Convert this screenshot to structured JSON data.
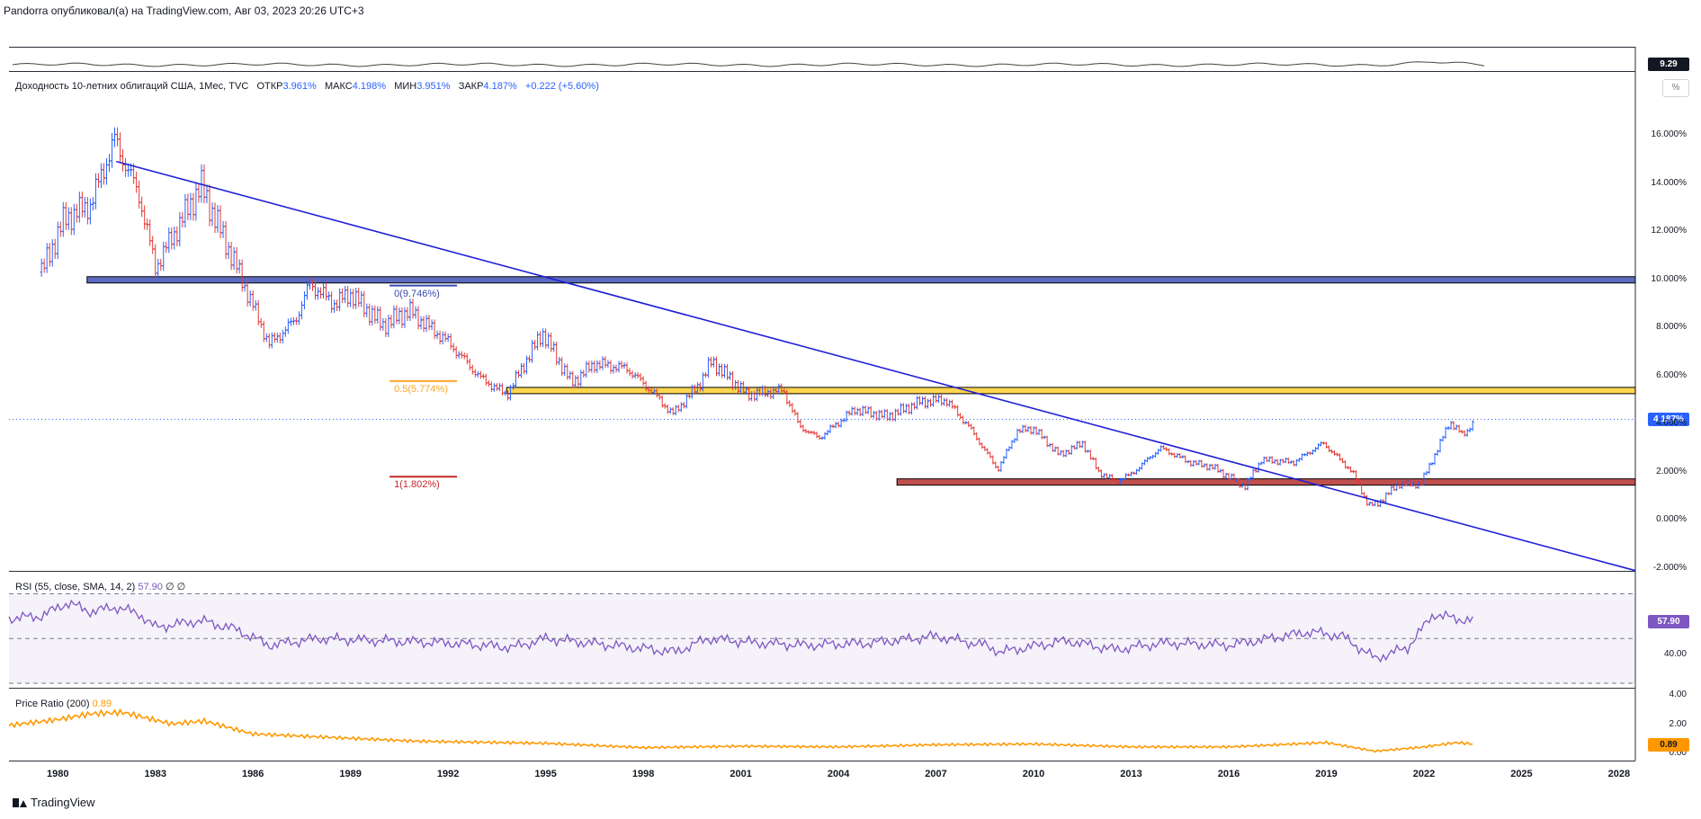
{
  "header": {
    "publish_line": "Pandorra опубликовал(а) на TradingView.com, Авг 03, 2023 20:26 UTC+3"
  },
  "top_strip": {
    "value_badge": "9.29"
  },
  "legend": {
    "symbol": "Доходность 10-летних облигаций США, 1Мес, TVC",
    "open_label": "ОТКР",
    "open": "3.961%",
    "high_label": "МАКС",
    "high": "4.198%",
    "low_label": "МИН",
    "low": "3.951%",
    "close_label": "ЗАКР",
    "close": "4.187%",
    "change": "+0.222 (+5.60%)"
  },
  "scale_button": "%",
  "price_badge": "4.187%",
  "fib_labels": {
    "level0": "0(9.746%)",
    "level05": "0.5(5.774%)",
    "level1": "1(1.802%)"
  },
  "rsi": {
    "legend": "RSI (55, close, SMA, 14, 2)",
    "value": "57.90",
    "extra1": "∅",
    "extra2": "∅",
    "tick": "40.00",
    "badge": "57.90"
  },
  "price_ratio": {
    "legend": "Price Ratio (200)",
    "value": "0.89",
    "ticks": [
      "4.00",
      "2.00",
      "0.00"
    ],
    "badge": "0.89"
  },
  "footer": {
    "brand": "TradingView"
  },
  "colors": {
    "up": "#2962ff",
    "down": "#e53935",
    "trend": "#1e1ed8",
    "rsi": "#7e57c2",
    "ratio": "#ff9800",
    "hband_blue": "#5c6bc0",
    "hband_yellow": "#ffd54f",
    "hband_red": "#c0504d"
  },
  "chart_data": [
    {
      "type": "candlestick",
      "title": "Доходность 10-летних облигаций США",
      "interval": "1Мес",
      "yticks": [
        "16.000%",
        "14.000%",
        "12.000%",
        "10.000%",
        "8.000%",
        "6.000%",
        "4.000%",
        "2.000%",
        "0.000%",
        "-2.000%"
      ],
      "ylim": [
        -2.0,
        17.5
      ],
      "xticks": [
        "1980",
        "1983",
        "1986",
        "1989",
        "1992",
        "1995",
        "1998",
        "2001",
        "2004",
        "2007",
        "2010",
        "2013",
        "2016",
        "2019",
        "2022",
        "2025",
        "2028"
      ],
      "xlim": [
        1978.5,
        2028.5
      ],
      "series": [
        {
          "name": "close",
          "x": [
            1979.5,
            1980.2,
            1981.0,
            1981.75,
            1982.5,
            1983.0,
            1984.4,
            1985.5,
            1986.5,
            1987.3,
            1987.75,
            1988.5,
            1989.0,
            1990.0,
            1990.8,
            1992.0,
            1993.0,
            1993.8,
            1994.9,
            1995.8,
            1996.5,
            1997.5,
            1998.3,
            1998.9,
            1999.7,
            2000.1,
            2001.2,
            2002.3,
            2002.8,
            2003.4,
            2004.5,
            2005.5,
            2006.5,
            2007.3,
            2008.0,
            2008.9,
            2009.5,
            2010.0,
            2010.8,
            2011.5,
            2012.0,
            2012.5,
            2013.0,
            2013.9,
            2014.8,
            2015.5,
            2016.5,
            2017.0,
            2018.0,
            2018.9,
            2019.8,
            2020.3,
            2020.6,
            2021.2,
            2021.9,
            2022.4,
            2022.8,
            2023.2,
            2023.58
          ],
          "y": [
            10.3,
            12.5,
            13.1,
            15.8,
            13.5,
            10.5,
            13.9,
            10.5,
            7.3,
            8.3,
            9.8,
            9.0,
            9.4,
            8.1,
            8.7,
            7.4,
            5.9,
            5.2,
            7.8,
            5.7,
            6.5,
            6.3,
            5.3,
            4.4,
            5.6,
            6.6,
            5.2,
            5.4,
            3.9,
            3.4,
            4.6,
            4.3,
            4.9,
            5.0,
            3.9,
            2.1,
            3.7,
            3.8,
            2.7,
            3.2,
            2.0,
            1.6,
            1.9,
            3.0,
            2.4,
            2.2,
            1.4,
            2.5,
            2.4,
            3.2,
            2.0,
            0.6,
            0.7,
            1.5,
            1.5,
            2.9,
            4.1,
            3.5,
            4.187
          ]
        }
      ],
      "annotations": {
        "trendline": {
          "from": [
            1981.8,
            14.9
          ],
          "to": [
            2028.5,
            -2.1
          ]
        },
        "hbands": [
          {
            "y": 10.0,
            "from": 1980.9
          },
          {
            "y": 5.4,
            "from": 1993.8
          },
          {
            "y": 1.6,
            "from": 2005.8
          }
        ],
        "fib_retracement": [
          9.746,
          5.774,
          1.802
        ]
      }
    },
    {
      "type": "line",
      "title": "RSI (55, close, SMA, 14, 2)",
      "ylim": [
        30,
        75
      ],
      "yticks": [
        "40.00"
      ],
      "series": [
        {
          "name": "RSI",
          "x": [
            1978.5,
            1979.5,
            1980.3,
            1981.0,
            1981.8,
            1982.5,
            1983.0,
            1984.4,
            1985.5,
            1986.5,
            1988.0,
            1990.0,
            1992.0,
            1994.0,
            1995.0,
            1997.0,
            1999.0,
            2000.0,
            2001.5,
            2003.0,
            2005.0,
            2007.0,
            2008.5,
            2009.0,
            2011.0,
            2012.5,
            2014.0,
            2016.0,
            2018.5,
            2019.5,
            2020.5,
            2021.5,
            2022.3,
            2022.9,
            2023.58
          ],
          "y": [
            59,
            60,
            66,
            62,
            64,
            61,
            55,
            58,
            54,
            47,
            50,
            49,
            48,
            46,
            50,
            47,
            44,
            50,
            48,
            47,
            48,
            51,
            47,
            44,
            49,
            45,
            48,
            47,
            53,
            51,
            41,
            46,
            61,
            59,
            57.9
          ]
        }
      ]
    },
    {
      "type": "area",
      "title": "Price Ratio (200)",
      "ylim": [
        0,
        4.5
      ],
      "yticks": [
        "4.00",
        "2.00",
        "0.00"
      ],
      "series": [
        {
          "name": "Price Ratio",
          "x": [
            1978.5,
            1980.0,
            1981.0,
            1982.0,
            1983.5,
            1984.5,
            1986.0,
            1988.0,
            1991.0,
            1995.0,
            1998.0,
            2001.0,
            2004.0,
            2007.0,
            2010.0,
            2013.0,
            2016.0,
            2019.0,
            2020.5,
            2022.0,
            2023.0,
            2023.58
          ],
          "y": [
            2.2,
            2.6,
            3.0,
            3.1,
            2.3,
            2.5,
            1.6,
            1.4,
            1.1,
            0.95,
            0.65,
            0.75,
            0.7,
            0.85,
            0.9,
            0.7,
            0.7,
            1.0,
            0.4,
            0.7,
            1.0,
            0.89
          ]
        }
      ]
    }
  ]
}
